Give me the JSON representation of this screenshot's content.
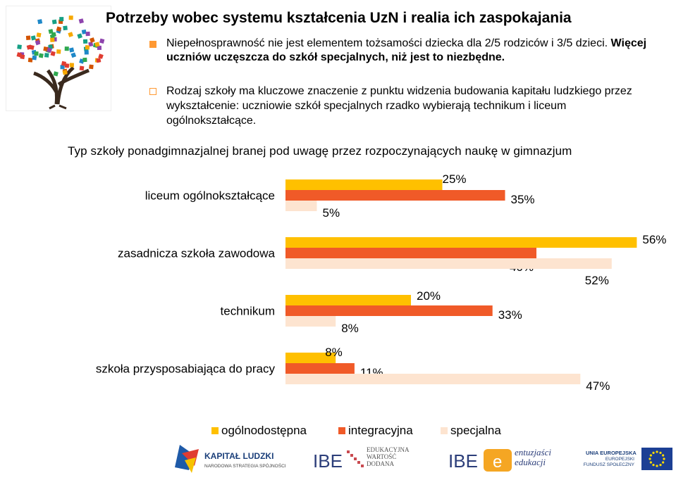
{
  "header": {
    "title": "Potrzeby wobec systemu kształcenia UzN i realia ich zaspokajania"
  },
  "bullets": [
    {
      "text": "Niepełnosprawność nie jest elementem tożsamości dziecka dla 2/5 rodziców i 3/5 dzieci.",
      "emphasis": "Więcej uczniów uczęszcza do szkół specjalnych, niż jest to niezbędne."
    },
    {
      "text": "Rodzaj szkoły ma kluczowe znaczenie z punktu widzenia budowania kapitału ludzkiego przez wykształcenie: uczniowie szkół specjalnych rzadko wybierają technikum i liceum ogólnokształcące."
    }
  ],
  "chart_data": {
    "type": "bar",
    "orientation": "horizontal",
    "title": "Typ szkoły ponadgimnazjalnej branej pod uwagę przez rozpoczynających naukę w gimnazjum",
    "categories": [
      "liceum ogólnokształcące",
      "zasadnicza szkoła zawodowa",
      "technikum",
      "szkoła przysposabiająca do pracy"
    ],
    "series": [
      {
        "name": "ogólnodostępna",
        "color": "#ffc000",
        "values": [
          25,
          56,
          20,
          8
        ]
      },
      {
        "name": "integracyjna",
        "color": "#f05a28",
        "values": [
          35,
          40,
          33,
          11
        ]
      },
      {
        "name": "specjalna",
        "color": "#fde4d0",
        "values": [
          5,
          52,
          8,
          47
        ]
      }
    ],
    "value_suffix": "%",
    "legend_position": "bottom",
    "xlim": [
      0,
      56
    ],
    "grid": false
  },
  "footer": {
    "logos": [
      "KAPITAŁ LUDZKI",
      "NARODOWA STRATEGIA SPÓJNOŚCI",
      "IBE",
      "EDUKACYJNA WARTOŚĆ DODANA",
      "IBE",
      "entuzjaści edukacji",
      "UNIA EUROPEJSKA",
      "EUROPEJSKI FUNDUSZ SPOŁECZNY"
    ]
  }
}
